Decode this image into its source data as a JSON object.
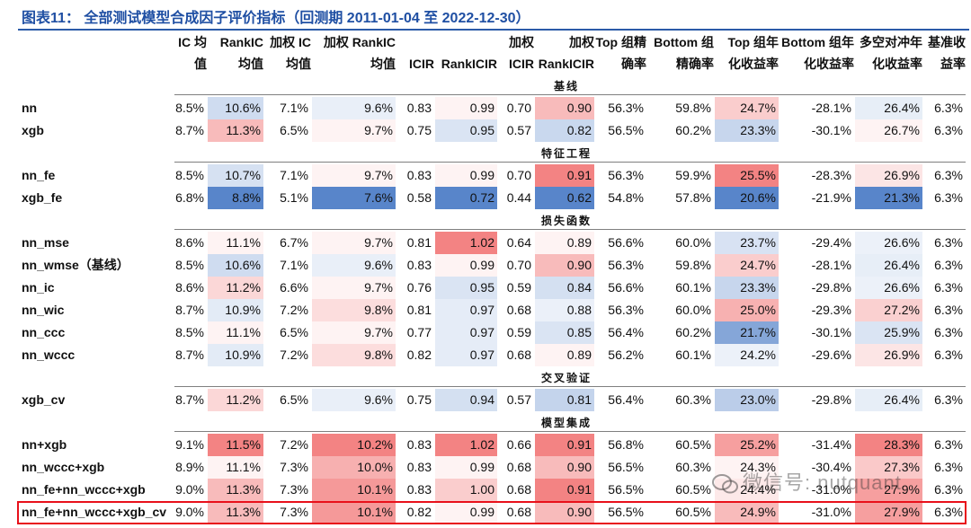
{
  "title": "图表11：  全部测试模型合成因子评价指标（回测期 2011-01-04 至 2022-12-30）",
  "headers": [
    [
      "IC 均",
      "值"
    ],
    [
      "RankIC",
      "均值"
    ],
    [
      "加权 IC",
      "均值"
    ],
    [
      "加权 RankIC",
      "均值"
    ],
    [
      "",
      "ICIR"
    ],
    [
      "",
      "RankICIR"
    ],
    [
      "加权",
      "ICIR"
    ],
    [
      "加权",
      "RankICIR"
    ],
    [
      "Top 组精",
      "确率"
    ],
    [
      "Bottom 组",
      "精确率"
    ],
    [
      "Top 组年",
      "化收益率"
    ],
    [
      "Bottom 组年",
      "化收益率"
    ],
    [
      "多空对冲年",
      "化收益率"
    ],
    [
      "基准收",
      "益率"
    ]
  ],
  "colors": {
    "title": "#1f4fa3",
    "border_highlight": "#e8101a",
    "heat_high": "#f07373",
    "heat_low": "#4f7fc4"
  },
  "sections": [
    {
      "name": "基线",
      "rows": [
        {
          "label": "nn",
          "values": [
            "8.5%",
            "10.6%",
            "7.1%",
            "9.6%",
            "0.83",
            "0.99",
            "0.70",
            "0.90",
            "56.3%",
            "59.8%",
            "24.7%",
            "-28.1%",
            "26.4%",
            "6.3%"
          ]
        },
        {
          "label": "xgb",
          "values": [
            "8.7%",
            "11.3%",
            "6.5%",
            "9.7%",
            "0.75",
            "0.95",
            "0.57",
            "0.82",
            "56.5%",
            "60.2%",
            "23.3%",
            "-30.1%",
            "26.7%",
            "6.3%"
          ]
        }
      ]
    },
    {
      "name": "特征工程",
      "rows": [
        {
          "label": "nn_fe",
          "values": [
            "8.5%",
            "10.7%",
            "7.1%",
            "9.7%",
            "0.83",
            "0.99",
            "0.70",
            "0.91",
            "56.3%",
            "59.9%",
            "25.5%",
            "-28.3%",
            "26.9%",
            "6.3%"
          ]
        },
        {
          "label": "xgb_fe",
          "values": [
            "6.8%",
            "8.8%",
            "5.1%",
            "7.6%",
            "0.58",
            "0.72",
            "0.44",
            "0.62",
            "54.8%",
            "57.8%",
            "20.6%",
            "-21.9%",
            "21.3%",
            "6.3%"
          ]
        }
      ]
    },
    {
      "name": "损失函数",
      "rows": [
        {
          "label": "nn_mse",
          "values": [
            "8.6%",
            "11.1%",
            "6.7%",
            "9.7%",
            "0.81",
            "1.02",
            "0.64",
            "0.89",
            "56.6%",
            "60.0%",
            "23.7%",
            "-29.4%",
            "26.6%",
            "6.3%"
          ]
        },
        {
          "label": "nn_wmse（基线）",
          "values": [
            "8.5%",
            "10.6%",
            "7.1%",
            "9.6%",
            "0.83",
            "0.99",
            "0.70",
            "0.90",
            "56.3%",
            "59.8%",
            "24.7%",
            "-28.1%",
            "26.4%",
            "6.3%"
          ]
        },
        {
          "label": "nn_ic",
          "values": [
            "8.6%",
            "11.2%",
            "6.6%",
            "9.7%",
            "0.76",
            "0.95",
            "0.59",
            "0.84",
            "56.6%",
            "60.1%",
            "23.3%",
            "-29.8%",
            "26.6%",
            "6.3%"
          ]
        },
        {
          "label": "nn_wic",
          "values": [
            "8.7%",
            "10.9%",
            "7.2%",
            "9.8%",
            "0.81",
            "0.97",
            "0.68",
            "0.88",
            "56.3%",
            "60.0%",
            "25.0%",
            "-29.3%",
            "27.2%",
            "6.3%"
          ]
        },
        {
          "label": "nn_ccc",
          "values": [
            "8.5%",
            "11.1%",
            "6.5%",
            "9.7%",
            "0.77",
            "0.97",
            "0.59",
            "0.85",
            "56.4%",
            "60.2%",
            "21.7%",
            "-30.1%",
            "25.9%",
            "6.3%"
          ]
        },
        {
          "label": "nn_wccc",
          "values": [
            "8.7%",
            "10.9%",
            "7.2%",
            "9.8%",
            "0.82",
            "0.97",
            "0.68",
            "0.89",
            "56.2%",
            "60.1%",
            "24.2%",
            "-29.6%",
            "26.9%",
            "6.3%"
          ]
        }
      ]
    },
    {
      "name": "交叉验证",
      "rows": [
        {
          "label": "xgb_cv",
          "values": [
            "8.7%",
            "11.2%",
            "6.5%",
            "9.6%",
            "0.75",
            "0.94",
            "0.57",
            "0.81",
            "56.4%",
            "60.3%",
            "23.0%",
            "-29.8%",
            "26.4%",
            "6.3%"
          ]
        }
      ]
    },
    {
      "name": "模型集成",
      "rows": [
        {
          "label": "nn+xgb",
          "values": [
            "9.1%",
            "11.5%",
            "7.2%",
            "10.2%",
            "0.83",
            "1.02",
            "0.66",
            "0.91",
            "56.8%",
            "60.5%",
            "25.2%",
            "-31.4%",
            "28.3%",
            "6.3%"
          ]
        },
        {
          "label": "nn_wccc+xgb",
          "values": [
            "8.9%",
            "11.1%",
            "7.3%",
            "10.0%",
            "0.83",
            "0.99",
            "0.68",
            "0.90",
            "56.5%",
            "60.3%",
            "24.3%",
            "-30.4%",
            "27.3%",
            "6.3%"
          ]
        },
        {
          "label": "nn_fe+nn_wccc+xgb",
          "values": [
            "9.0%",
            "11.3%",
            "7.3%",
            "10.1%",
            "0.83",
            "1.00",
            "0.68",
            "0.91",
            "56.5%",
            "60.5%",
            "24.4%",
            "-31.0%",
            "27.9%",
            "6.3%"
          ]
        },
        {
          "label": "nn_fe+nn_wccc+xgb_cv",
          "values": [
            "9.0%",
            "11.3%",
            "7.3%",
            "10.1%",
            "0.82",
            "0.99",
            "0.68",
            "0.90",
            "56.5%",
            "60.5%",
            "24.9%",
            "-31.0%",
            "27.9%",
            "6.3%"
          ]
        }
      ]
    }
  ],
  "watermark": "微信号: nutquant"
}
